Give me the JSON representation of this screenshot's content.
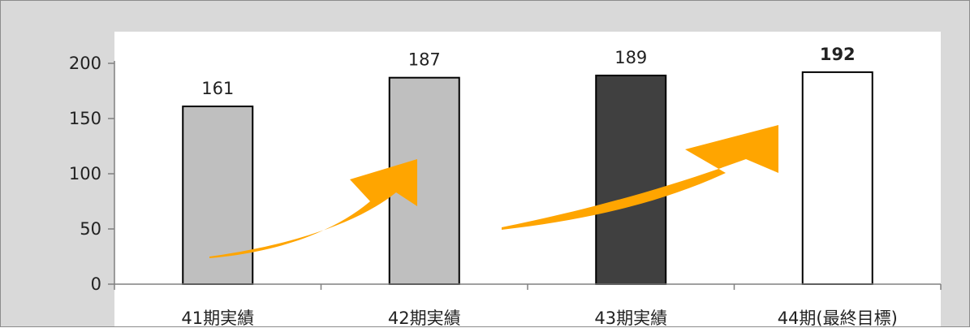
{
  "chart_data": {
    "type": "bar",
    "categories": [
      "41期実績",
      "42期実績",
      "43期実績",
      "44期(最終目標)"
    ],
    "values": [
      161,
      187,
      189,
      192
    ],
    "data_labels": [
      "161",
      "187",
      "189",
      "192"
    ],
    "ylim": [
      0,
      200
    ],
    "yticks": [
      0,
      50,
      100,
      150,
      200
    ],
    "ytick_labels": [
      "0",
      "50",
      "100",
      "150",
      "200"
    ],
    "bar_colors": [
      "#bfbfbf",
      "#bfbfbf",
      "#404040",
      "#ffffff"
    ],
    "bar_edge_color": "#000000",
    "plot_background": "#ffffff",
    "frame_background": "#d9d9d9",
    "arrow_color": "#ffa500",
    "grid": false,
    "legend": "none",
    "emphasized_label_index": 3
  }
}
